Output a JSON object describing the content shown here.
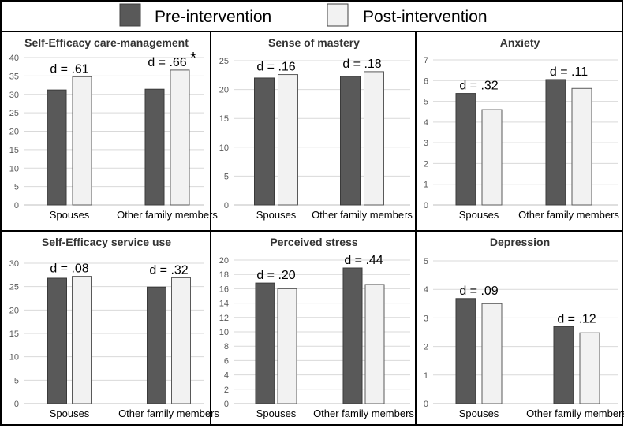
{
  "legend": {
    "pre_label": "Pre-intervention",
    "post_label": "Post-intervention",
    "pre_color": "#595959",
    "post_color": "#f2f2f2"
  },
  "chart_data": [
    {
      "type": "bar",
      "title": "Self-Efficacy care-management",
      "categories": [
        "Spouses",
        "Other family members"
      ],
      "series": [
        {
          "name": "Pre-intervention",
          "values": [
            31.2,
            31.4
          ]
        },
        {
          "name": "Post-intervention",
          "values": [
            34.8,
            36.6
          ]
        }
      ],
      "ylim": [
        0,
        40
      ],
      "ystep": 5,
      "effect_labels": [
        "d = .61",
        "d = .66"
      ],
      "significance": [
        "",
        "*"
      ]
    },
    {
      "type": "bar",
      "title": "Sense of mastery",
      "categories": [
        "Spouses",
        "Other family members"
      ],
      "series": [
        {
          "name": "Pre-intervention",
          "values": [
            22.0,
            22.3
          ]
        },
        {
          "name": "Post-intervention",
          "values": [
            22.6,
            23.1
          ]
        }
      ],
      "ylim": [
        0,
        25
      ],
      "ystep": 5,
      "effect_labels": [
        "d = .16",
        "d = .18"
      ],
      "significance": [
        "",
        ""
      ]
    },
    {
      "type": "bar",
      "title": "Anxiety",
      "categories": [
        "Spouses",
        "Other family members"
      ],
      "series": [
        {
          "name": "Pre-intervention",
          "values": [
            5.38,
            6.05
          ]
        },
        {
          "name": "Post-intervention",
          "values": [
            4.6,
            5.62
          ]
        }
      ],
      "ylim": [
        0,
        7
      ],
      "ystep": 1,
      "effect_labels": [
        "d = .32",
        "d = .11"
      ],
      "significance": [
        "",
        ""
      ]
    },
    {
      "type": "bar",
      "title": "Self-Efficacy service use",
      "categories": [
        "Spouses",
        "Other family members"
      ],
      "series": [
        {
          "name": "Pre-intervention",
          "values": [
            26.8,
            24.9
          ]
        },
        {
          "name": "Post-intervention",
          "values": [
            27.2,
            26.9
          ]
        }
      ],
      "ylim": [
        0,
        30
      ],
      "ystep": 5,
      "effect_labels": [
        "d = .08",
        "d = .32"
      ],
      "significance": [
        "",
        ""
      ]
    },
    {
      "type": "bar",
      "title": "Perceived stress",
      "categories": [
        "Spouses",
        "Other family members"
      ],
      "series": [
        {
          "name": "Pre-intervention",
          "values": [
            16.8,
            18.9
          ]
        },
        {
          "name": "Post-intervention",
          "values": [
            16.0,
            16.6
          ]
        }
      ],
      "ylim": [
        0,
        20
      ],
      "ystep": 2,
      "effect_labels": [
        "d = .20",
        "d = .44"
      ],
      "significance": [
        "",
        ""
      ]
    },
    {
      "type": "bar",
      "title": "Depression",
      "categories": [
        "Spouses",
        "Other family members"
      ],
      "series": [
        {
          "name": "Pre-intervention",
          "values": [
            3.68,
            2.7
          ]
        },
        {
          "name": "Post-intervention",
          "values": [
            3.5,
            2.48
          ]
        }
      ],
      "ylim": [
        0,
        5
      ],
      "ystep": 1,
      "effect_labels": [
        "d = .09",
        "d = .12"
      ],
      "significance": [
        "",
        ""
      ]
    }
  ]
}
